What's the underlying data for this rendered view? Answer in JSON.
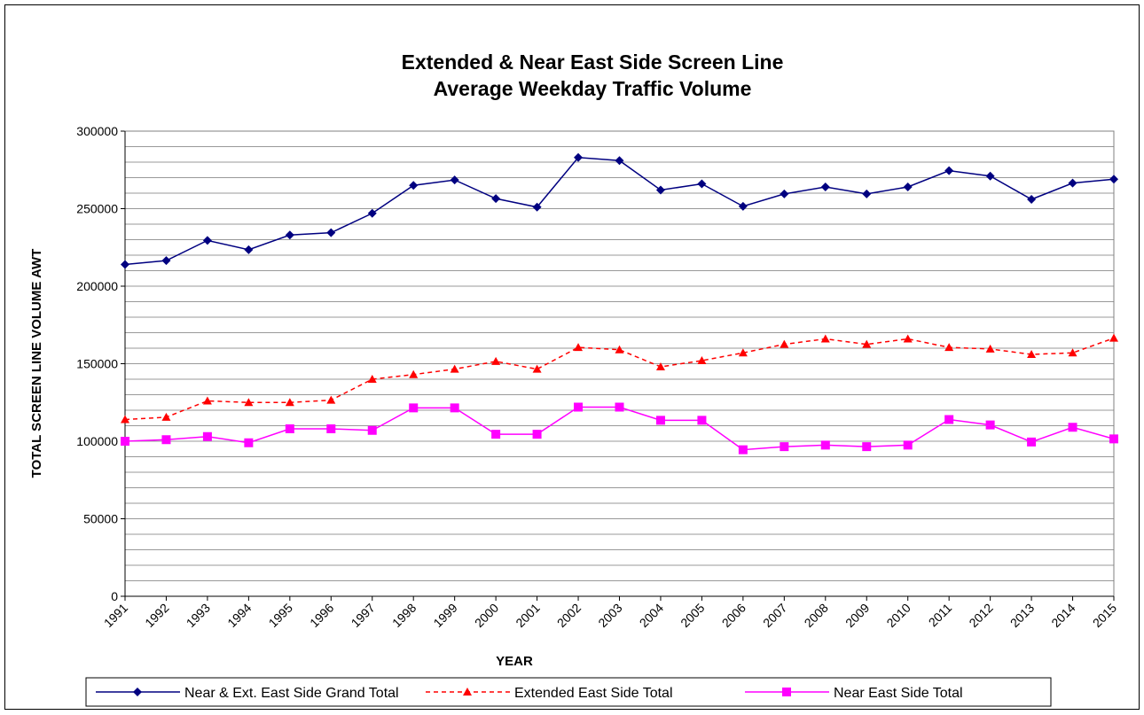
{
  "chart_data": {
    "type": "line",
    "title": [
      "Extended & Near East Side Screen Line",
      "Average Weekday Traffic Volume"
    ],
    "xlabel": "YEAR",
    "ylabel": "TOTAL SCREEN LINE VOLUME AWT",
    "categories": [
      "1991",
      "1992",
      "1993",
      "1994",
      "1995",
      "1996",
      "1997",
      "1998",
      "1999",
      "2000",
      "2001",
      "2002",
      "2003",
      "2004",
      "2005",
      "2006",
      "2007",
      "2008",
      "2009",
      "2010",
      "2011",
      "2012",
      "2013",
      "2014",
      "2015"
    ],
    "ylim": [
      0,
      300000
    ],
    "yticks": [
      0,
      50000,
      100000,
      150000,
      200000,
      250000,
      300000
    ],
    "minor_yticks": [
      10000,
      20000,
      30000,
      40000,
      60000,
      70000,
      80000,
      90000,
      110000,
      120000,
      130000,
      140000,
      160000,
      170000,
      180000,
      190000,
      210000,
      220000,
      230000,
      240000,
      260000,
      270000,
      280000,
      290000
    ],
    "grid": true,
    "legend": "bottom",
    "series": [
      {
        "name": "Near & Ext. East Side Grand Total",
        "color": "#000080",
        "marker": "diamond",
        "line_style": "solid",
        "values": [
          214000,
          216500,
          229500,
          223500,
          233000,
          234500,
          247000,
          265000,
          268500,
          256500,
          251000,
          283000,
          281000,
          262000,
          266000,
          251500,
          259500,
          264000,
          259500,
          264000,
          274500,
          271000,
          256000,
          266500,
          269000
        ]
      },
      {
        "name": "Extended East Side Total",
        "color": "#ff0000",
        "marker": "triangle",
        "line_style": "dashed",
        "values": [
          114000,
          115500,
          126000,
          125000,
          125000,
          126500,
          140000,
          143000,
          146500,
          151500,
          146500,
          160500,
          159000,
          148000,
          152000,
          157000,
          162500,
          166000,
          162500,
          166000,
          160500,
          159500,
          156000,
          157000,
          166500
        ]
      },
      {
        "name": "Near East Side Total",
        "color": "#ff00ff",
        "marker": "square",
        "line_style": "solid",
        "values": [
          100000,
          101000,
          103000,
          99000,
          108000,
          108000,
          107000,
          121500,
          121500,
          104500,
          104500,
          122000,
          122000,
          113500,
          113500,
          94500,
          96500,
          97500,
          96500,
          97500,
          114000,
          110500,
          99500,
          109000,
          101500
        ]
      }
    ]
  }
}
